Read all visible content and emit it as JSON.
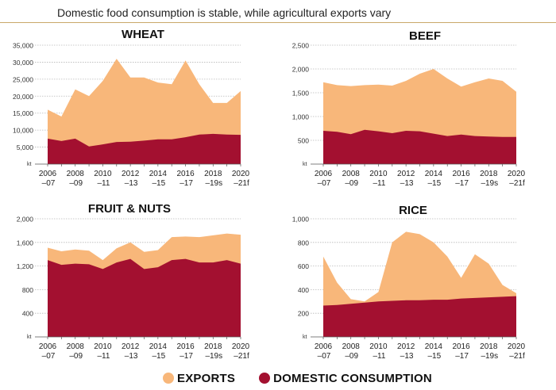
{
  "title": "Domestic food consumption is stable, while agricultural exports vary",
  "colors": {
    "exports": "#f8b77a",
    "domestic": "#a31030",
    "grid": "#b8b8b8",
    "accent": "#c9a86a"
  },
  "legend": {
    "exports": "EXPORTS",
    "domestic": "DOMESTIC CONSUMPTION"
  },
  "x_tick_labels": [
    [
      "2006",
      "–07"
    ],
    [
      "2008",
      "–09"
    ],
    [
      "2010",
      "–11"
    ],
    [
      "2012",
      "–13"
    ],
    [
      "2014",
      "–15"
    ],
    [
      "2016",
      "–17"
    ],
    [
      "2018",
      "–19s"
    ],
    [
      "2020",
      "–21f"
    ]
  ],
  "chart_data": [
    {
      "type": "area",
      "title": "WHEAT",
      "unit": "kt",
      "ylim": [
        0,
        35000
      ],
      "yticks": [
        5000,
        10000,
        15000,
        20000,
        25000,
        30000,
        35000
      ],
      "ytick_labels": [
        "5,000",
        "10,000",
        "15,000",
        "20,000",
        "25,000",
        "30,000",
        "35,000"
      ],
      "grid": true,
      "x": [
        "2006–07",
        "2007–08",
        "2008–09",
        "2009–10",
        "2010–11",
        "2011–12",
        "2012–13",
        "2013–14",
        "2014–15",
        "2015–16",
        "2016–17",
        "2017–18",
        "2018–19s",
        "2019–20",
        "2020–21f"
      ],
      "series": [
        {
          "name": "DOMESTIC CONSUMPTION",
          "values": [
            7500,
            6800,
            7500,
            5200,
            5800,
            6500,
            6600,
            6900,
            7300,
            7300,
            7900,
            8700,
            8900,
            8700,
            8600
          ]
        },
        {
          "name": "EXPORTS",
          "values": [
            16000,
            14000,
            22000,
            20000,
            24500,
            31000,
            25500,
            25500,
            24000,
            23500,
            30500,
            23500,
            18000,
            18000,
            21500
          ]
        }
      ]
    },
    {
      "type": "area",
      "title": "BEEF",
      "unit": "kt",
      "ylim": [
        0,
        2500
      ],
      "yticks": [
        500,
        1000,
        1500,
        2000,
        2500
      ],
      "ytick_labels": [
        "500",
        "1,000",
        "1,500",
        "2,000",
        "2,500"
      ],
      "grid": true,
      "x": [
        "2006–07",
        "2007–08",
        "2008–09",
        "2009–10",
        "2010–11",
        "2011–12",
        "2012–13",
        "2013–14",
        "2014–15",
        "2015–16",
        "2016–17",
        "2017–18",
        "2018–19s",
        "2019–20",
        "2020–21f"
      ],
      "series": [
        {
          "name": "DOMESTIC CONSUMPTION",
          "values": [
            700,
            680,
            630,
            720,
            690,
            650,
            700,
            690,
            640,
            590,
            620,
            590,
            580,
            570,
            570
          ]
        },
        {
          "name": "EXPORTS",
          "values": [
            1720,
            1660,
            1640,
            1660,
            1670,
            1650,
            1750,
            1900,
            2000,
            1800,
            1630,
            1720,
            1800,
            1750,
            1520
          ]
        }
      ]
    },
    {
      "type": "area",
      "title": "FRUIT & NUTS",
      "unit": "kt",
      "ylim": [
        0,
        2000
      ],
      "yticks": [
        400,
        800,
        1200,
        1600,
        2000
      ],
      "ytick_labels": [
        "400",
        "800",
        "1,200",
        "1,600",
        "2,000"
      ],
      "grid": true,
      "x": [
        "2006–07",
        "2007–08",
        "2008–09",
        "2009–10",
        "2010–11",
        "2011–12",
        "2012–13",
        "2013–14",
        "2014–15",
        "2015–16",
        "2016–17",
        "2017–18",
        "2018–19s",
        "2019–20",
        "2020–21f"
      ],
      "series": [
        {
          "name": "DOMESTIC CONSUMPTION",
          "values": [
            1300,
            1220,
            1240,
            1230,
            1150,
            1260,
            1320,
            1150,
            1180,
            1300,
            1320,
            1260,
            1260,
            1300,
            1240
          ]
        },
        {
          "name": "EXPORTS",
          "values": [
            1510,
            1450,
            1480,
            1460,
            1300,
            1500,
            1600,
            1440,
            1470,
            1690,
            1700,
            1690,
            1720,
            1750,
            1730
          ]
        }
      ]
    },
    {
      "type": "area",
      "title": "RICE",
      "unit": "kt",
      "ylim": [
        0,
        1000
      ],
      "yticks": [
        200,
        400,
        600,
        800,
        1000
      ],
      "ytick_labels": [
        "200",
        "400",
        "600",
        "800",
        "1,000"
      ],
      "grid": true,
      "x": [
        "2006–07",
        "2007–08",
        "2008–09",
        "2009–10",
        "2010–11",
        "2011–12",
        "2012–13",
        "2013–14",
        "2014–15",
        "2015–16",
        "2016–17",
        "2017–18",
        "2018–19s",
        "2019–20",
        "2020–21f"
      ],
      "series": [
        {
          "name": "DOMESTIC CONSUMPTION",
          "values": [
            265,
            270,
            280,
            290,
            300,
            305,
            310,
            310,
            315,
            315,
            325,
            330,
            335,
            340,
            345
          ]
        },
        {
          "name": "EXPORTS",
          "values": [
            680,
            460,
            320,
            300,
            380,
            800,
            890,
            870,
            800,
            680,
            500,
            700,
            620,
            440,
            370
          ]
        }
      ]
    }
  ]
}
